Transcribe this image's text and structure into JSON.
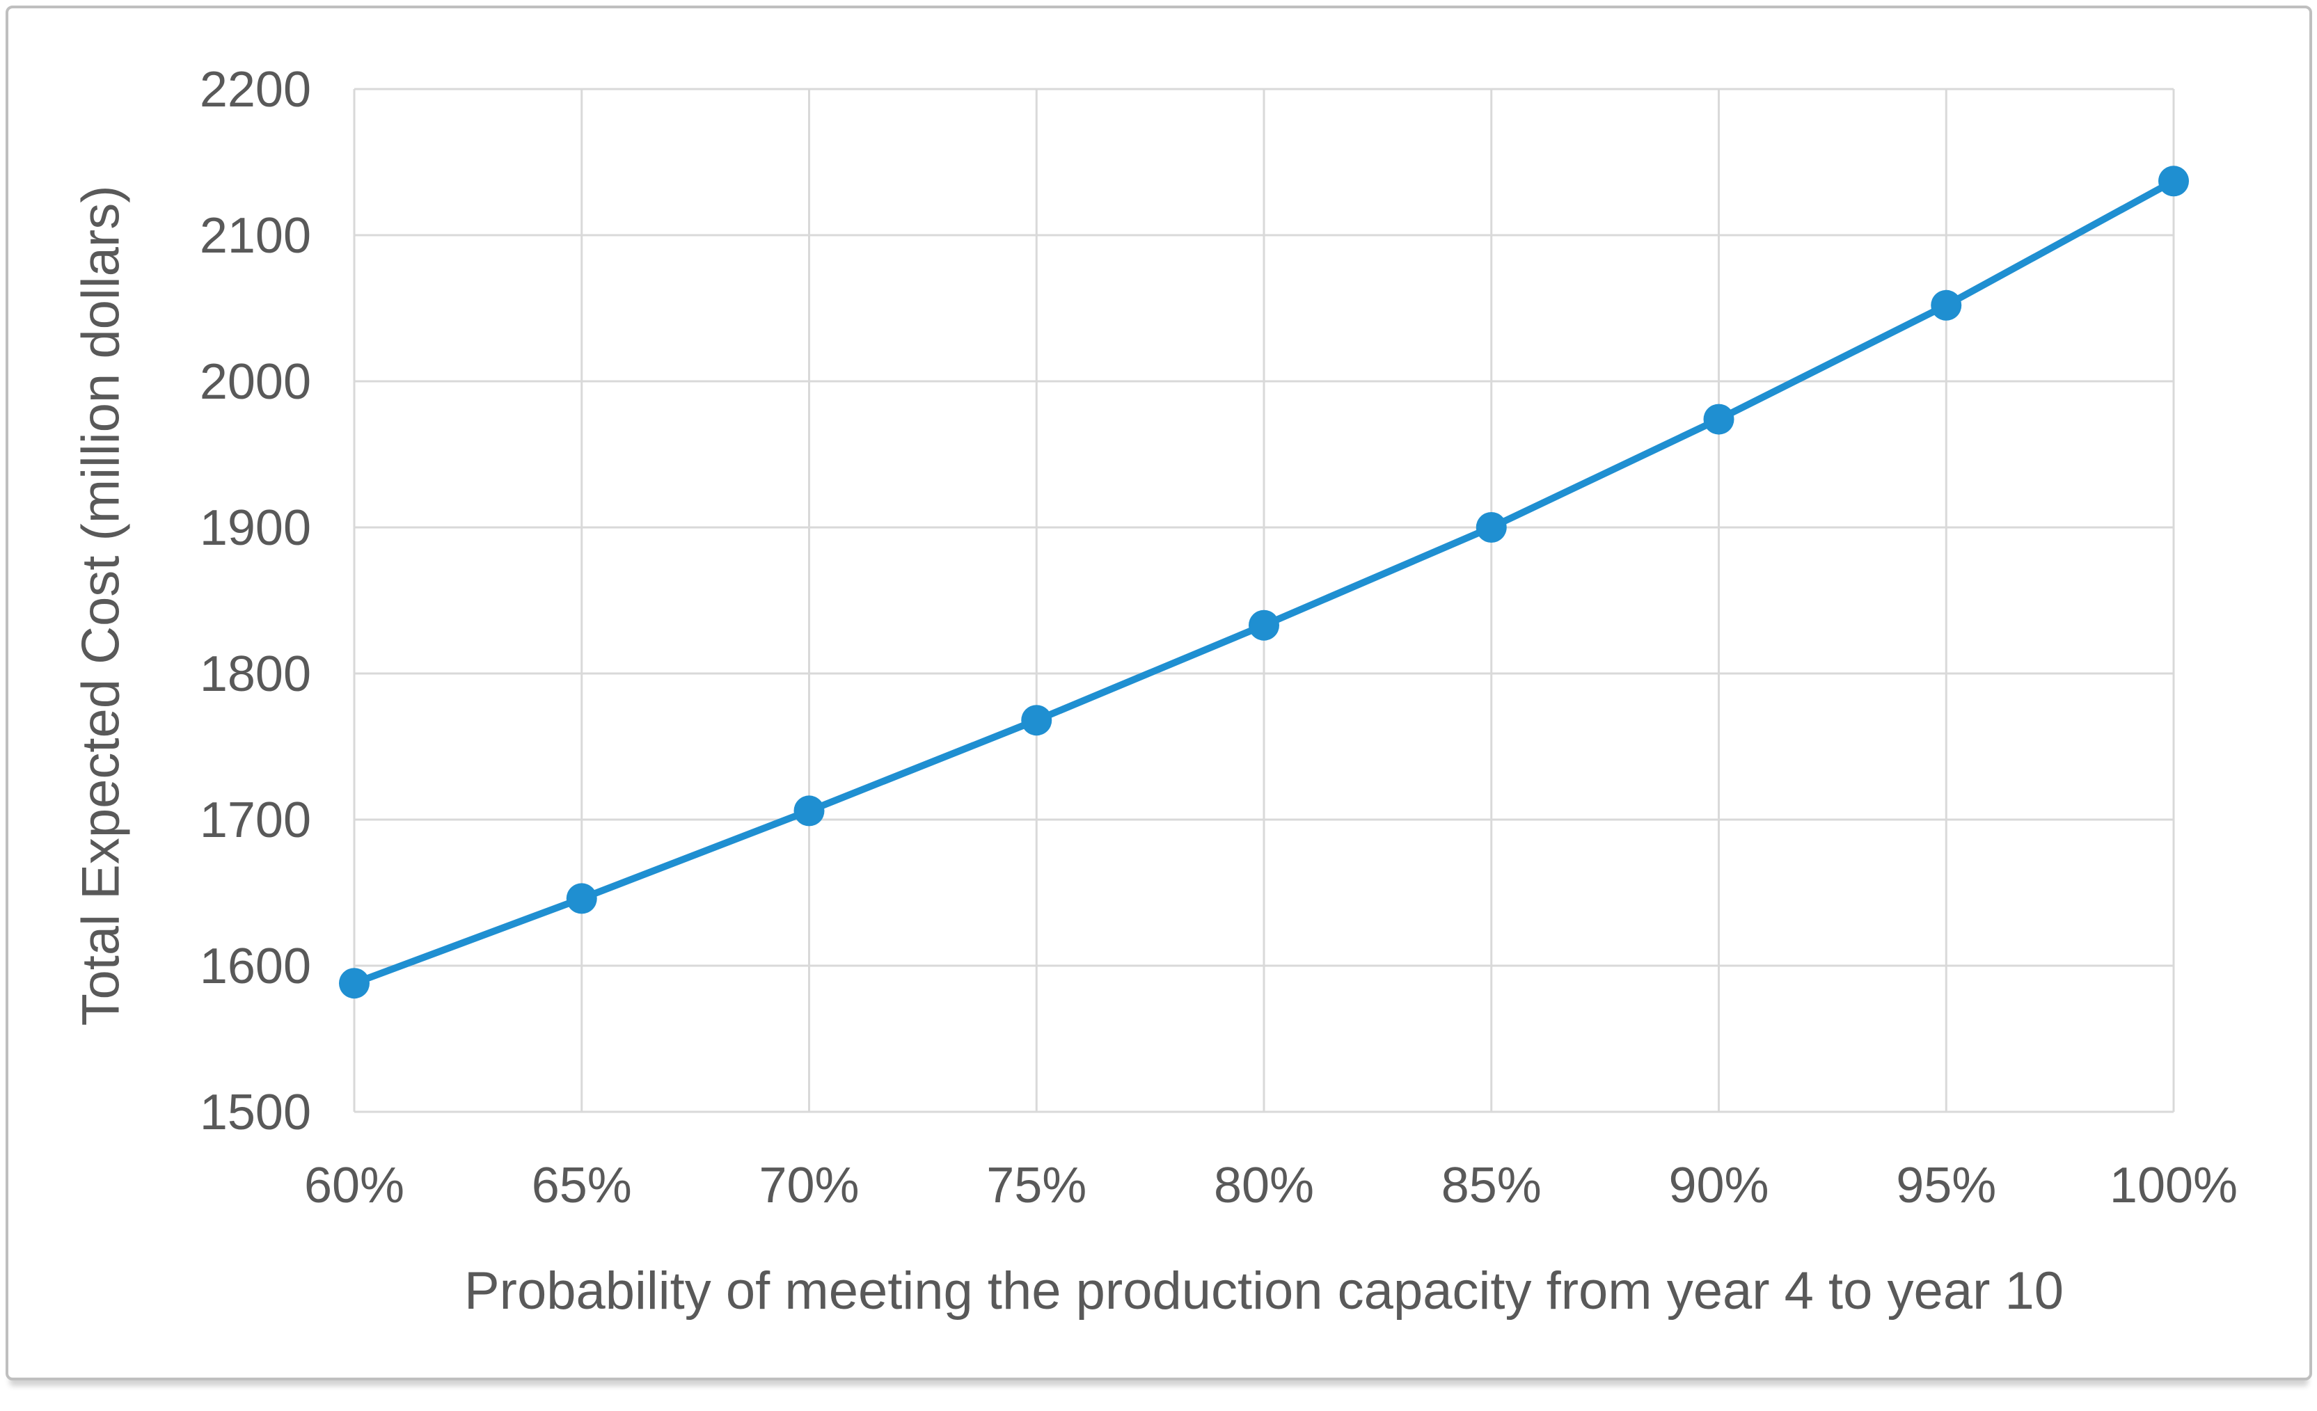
{
  "chart_data": {
    "type": "line",
    "title": "",
    "categories": [
      "60%",
      "65%",
      "70%",
      "75%",
      "80%",
      "85%",
      "90%",
      "95%",
      "100%"
    ],
    "series": [
      {
        "name": "Total Expected Cost",
        "values": [
          1588,
          1646,
          1706,
          1768,
          1833,
          1900,
          1974,
          2052,
          2137
        ]
      }
    ],
    "xlabel": "Probability of meeting the production capacity from year 4 to year 10",
    "ylabel": "Total Expected Cost (million dollars)",
    "ylim": [
      1500,
      2200
    ],
    "ytick_step": 100,
    "yticks": [
      "1500",
      "1600",
      "1700",
      "1800",
      "1900",
      "2000",
      "2100",
      "2200"
    ],
    "grid": true,
    "legend": "none",
    "marker": "circle",
    "colors": {
      "line": "#1f8fd1",
      "marker": "#1f8fd1",
      "gridline": "#d9d9d9",
      "axis_text": "#595959",
      "background": "#ffffff",
      "frame_border": "#bfbfbf"
    }
  }
}
